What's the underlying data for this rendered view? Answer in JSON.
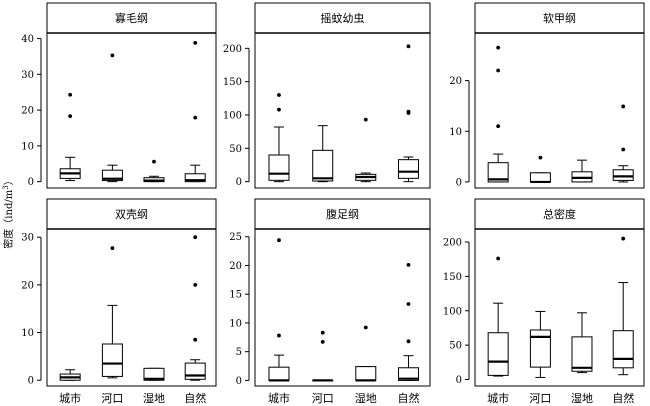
{
  "chart_data": {
    "type": "boxplot",
    "ylabel_text": "密度",
    "ylabel_unit": "（ind/m",
    "ylabel_sup": "3",
    "ylabel_close": "）",
    "categories": [
      "城市",
      "河口",
      "湿地",
      "自然"
    ],
    "grid": false,
    "panels": [
      {
        "title": "寡毛纲",
        "ylim": [
          -1.5,
          41
        ],
        "yticks": [
          0,
          10,
          20,
          30,
          40
        ],
        "tick_labels": [
          "0",
          "10",
          "20",
          "30",
          "40"
        ],
        "boxes": [
          {
            "category": "城市",
            "min": 0.3,
            "q1": 0.9,
            "median": 2.3,
            "q3": 3.6,
            "max": 6.8,
            "outliers": [
              18.3,
              24.3
            ]
          },
          {
            "category": "河口",
            "min": 0.0,
            "q1": 0.3,
            "median": 0.8,
            "q3": 3.2,
            "max": 4.6,
            "outliers": [
              35.3
            ]
          },
          {
            "category": "湿地",
            "min": 0.0,
            "q1": 0.0,
            "median": 0.3,
            "q3": 1.1,
            "max": 1.5,
            "outliers": [
              5.6
            ]
          },
          {
            "category": "自然",
            "min": 0.0,
            "q1": 0.0,
            "median": 0.4,
            "q3": 2.2,
            "max": 4.6,
            "outliers": [
              17.9,
              38.8
            ]
          }
        ]
      },
      {
        "title": "摇蚊幼虫",
        "ylim": [
          -8,
          220
        ],
        "yticks": [
          0,
          50,
          100,
          150,
          200
        ],
        "tick_labels": [
          "0",
          "50",
          "100",
          "150",
          "200"
        ],
        "boxes": [
          {
            "category": "城市",
            "min": 0,
            "q1": 2,
            "median": 12,
            "q3": 40,
            "max": 82,
            "outliers": [
              108,
              130
            ]
          },
          {
            "category": "河口",
            "min": 0,
            "q1": 1,
            "median": 5,
            "q3": 47,
            "max": 84,
            "outliers": []
          },
          {
            "category": "湿地",
            "min": 0,
            "q1": 2,
            "median": 7,
            "q3": 11,
            "max": 13,
            "outliers": [
              93
            ]
          },
          {
            "category": "自然",
            "min": 0,
            "q1": 5,
            "median": 15,
            "q3": 33,
            "max": 37,
            "outliers": [
              103,
              105,
              203
            ]
          }
        ]
      },
      {
        "title": "软甲纲",
        "ylim": [
          -1,
          29
        ],
        "yticks": [
          0,
          10,
          20
        ],
        "tick_labels": [
          "0",
          "10",
          "20"
        ],
        "boxes": [
          {
            "category": "城市",
            "min": 0.0,
            "q1": 0.0,
            "median": 0.5,
            "q3": 3.8,
            "max": 5.5,
            "outliers": [
              11.0,
              22.0,
              26.5
            ]
          },
          {
            "category": "河口",
            "min": 0.0,
            "q1": 0.0,
            "median": 0.0,
            "q3": 1.8,
            "max": 1.8,
            "outliers": [
              4.8
            ]
          },
          {
            "category": "湿地",
            "min": 0.0,
            "q1": 0.0,
            "median": 0.8,
            "q3": 2.0,
            "max": 4.3,
            "outliers": []
          },
          {
            "category": "自然",
            "min": 0.0,
            "q1": 0.3,
            "median": 1.1,
            "q3": 2.4,
            "max": 3.2,
            "outliers": [
              6.4,
              14.9
            ]
          }
        ]
      },
      {
        "title": "双壳纲",
        "ylim": [
          -1,
          31.3
        ],
        "yticks": [
          0,
          10,
          20,
          30
        ],
        "tick_labels": [
          "0",
          "10",
          "20",
          "30"
        ],
        "boxes": [
          {
            "category": "城市",
            "min": 0.0,
            "q1": 0.0,
            "median": 0.6,
            "q3": 1.3,
            "max": 2.2,
            "outliers": []
          },
          {
            "category": "河口",
            "min": 0.5,
            "q1": 0.8,
            "median": 3.5,
            "q3": 7.6,
            "max": 15.7,
            "outliers": [
              27.7
            ]
          },
          {
            "category": "湿地",
            "min": 0.0,
            "q1": 0.0,
            "median": 0.3,
            "q3": 2.5,
            "max": 2.5,
            "outliers": []
          },
          {
            "category": "自然",
            "min": 0.0,
            "q1": 0.2,
            "median": 1.0,
            "q3": 3.6,
            "max": 4.3,
            "outliers": [
              8.5,
              20.0,
              30.0
            ]
          }
        ]
      },
      {
        "title": "腹足纲",
        "ylim": [
          -0.8,
          26
        ],
        "yticks": [
          0,
          5,
          10,
          15,
          20,
          25
        ],
        "tick_labels": [
          "0",
          "5",
          "10",
          "15",
          "20",
          "25"
        ],
        "boxes": [
          {
            "category": "城市",
            "min": 0.0,
            "q1": 0.0,
            "median": 0.0,
            "q3": 2.3,
            "max": 4.4,
            "outliers": [
              7.8,
              24.4
            ]
          },
          {
            "category": "河口",
            "min": 0.0,
            "q1": 0.0,
            "median": 0.0,
            "q3": 0.0,
            "max": 0.0,
            "outliers": [
              6.7,
              8.3
            ]
          },
          {
            "category": "湿地",
            "min": 0.0,
            "q1": 0.0,
            "median": 0.0,
            "q3": 2.4,
            "max": 2.4,
            "outliers": [
              9.2
            ]
          },
          {
            "category": "自然",
            "min": 0.0,
            "q1": 0.0,
            "median": 0.3,
            "q3": 2.2,
            "max": 4.3,
            "outliers": [
              6.8,
              13.3,
              20.1
            ]
          }
        ]
      },
      {
        "title": "总密度",
        "ylim": [
          -8,
          216
        ],
        "yticks": [
          0,
          50,
          100,
          150,
          200
        ],
        "tick_labels": [
          "0",
          "50",
          "100",
          "150",
          "200"
        ],
        "boxes": [
          {
            "category": "城市",
            "min": 5,
            "q1": 6,
            "median": 26,
            "q3": 68,
            "max": 111,
            "outliers": [
              176
            ]
          },
          {
            "category": "河口",
            "min": 3,
            "q1": 18,
            "median": 62,
            "q3": 72,
            "max": 99,
            "outliers": []
          },
          {
            "category": "湿地",
            "min": 10,
            "q1": 12,
            "median": 17,
            "q3": 62,
            "max": 97,
            "outliers": []
          },
          {
            "category": "自然",
            "min": 7,
            "q1": 17,
            "median": 30,
            "q3": 71,
            "max": 141,
            "outliers": [
              205
            ]
          }
        ]
      }
    ]
  }
}
